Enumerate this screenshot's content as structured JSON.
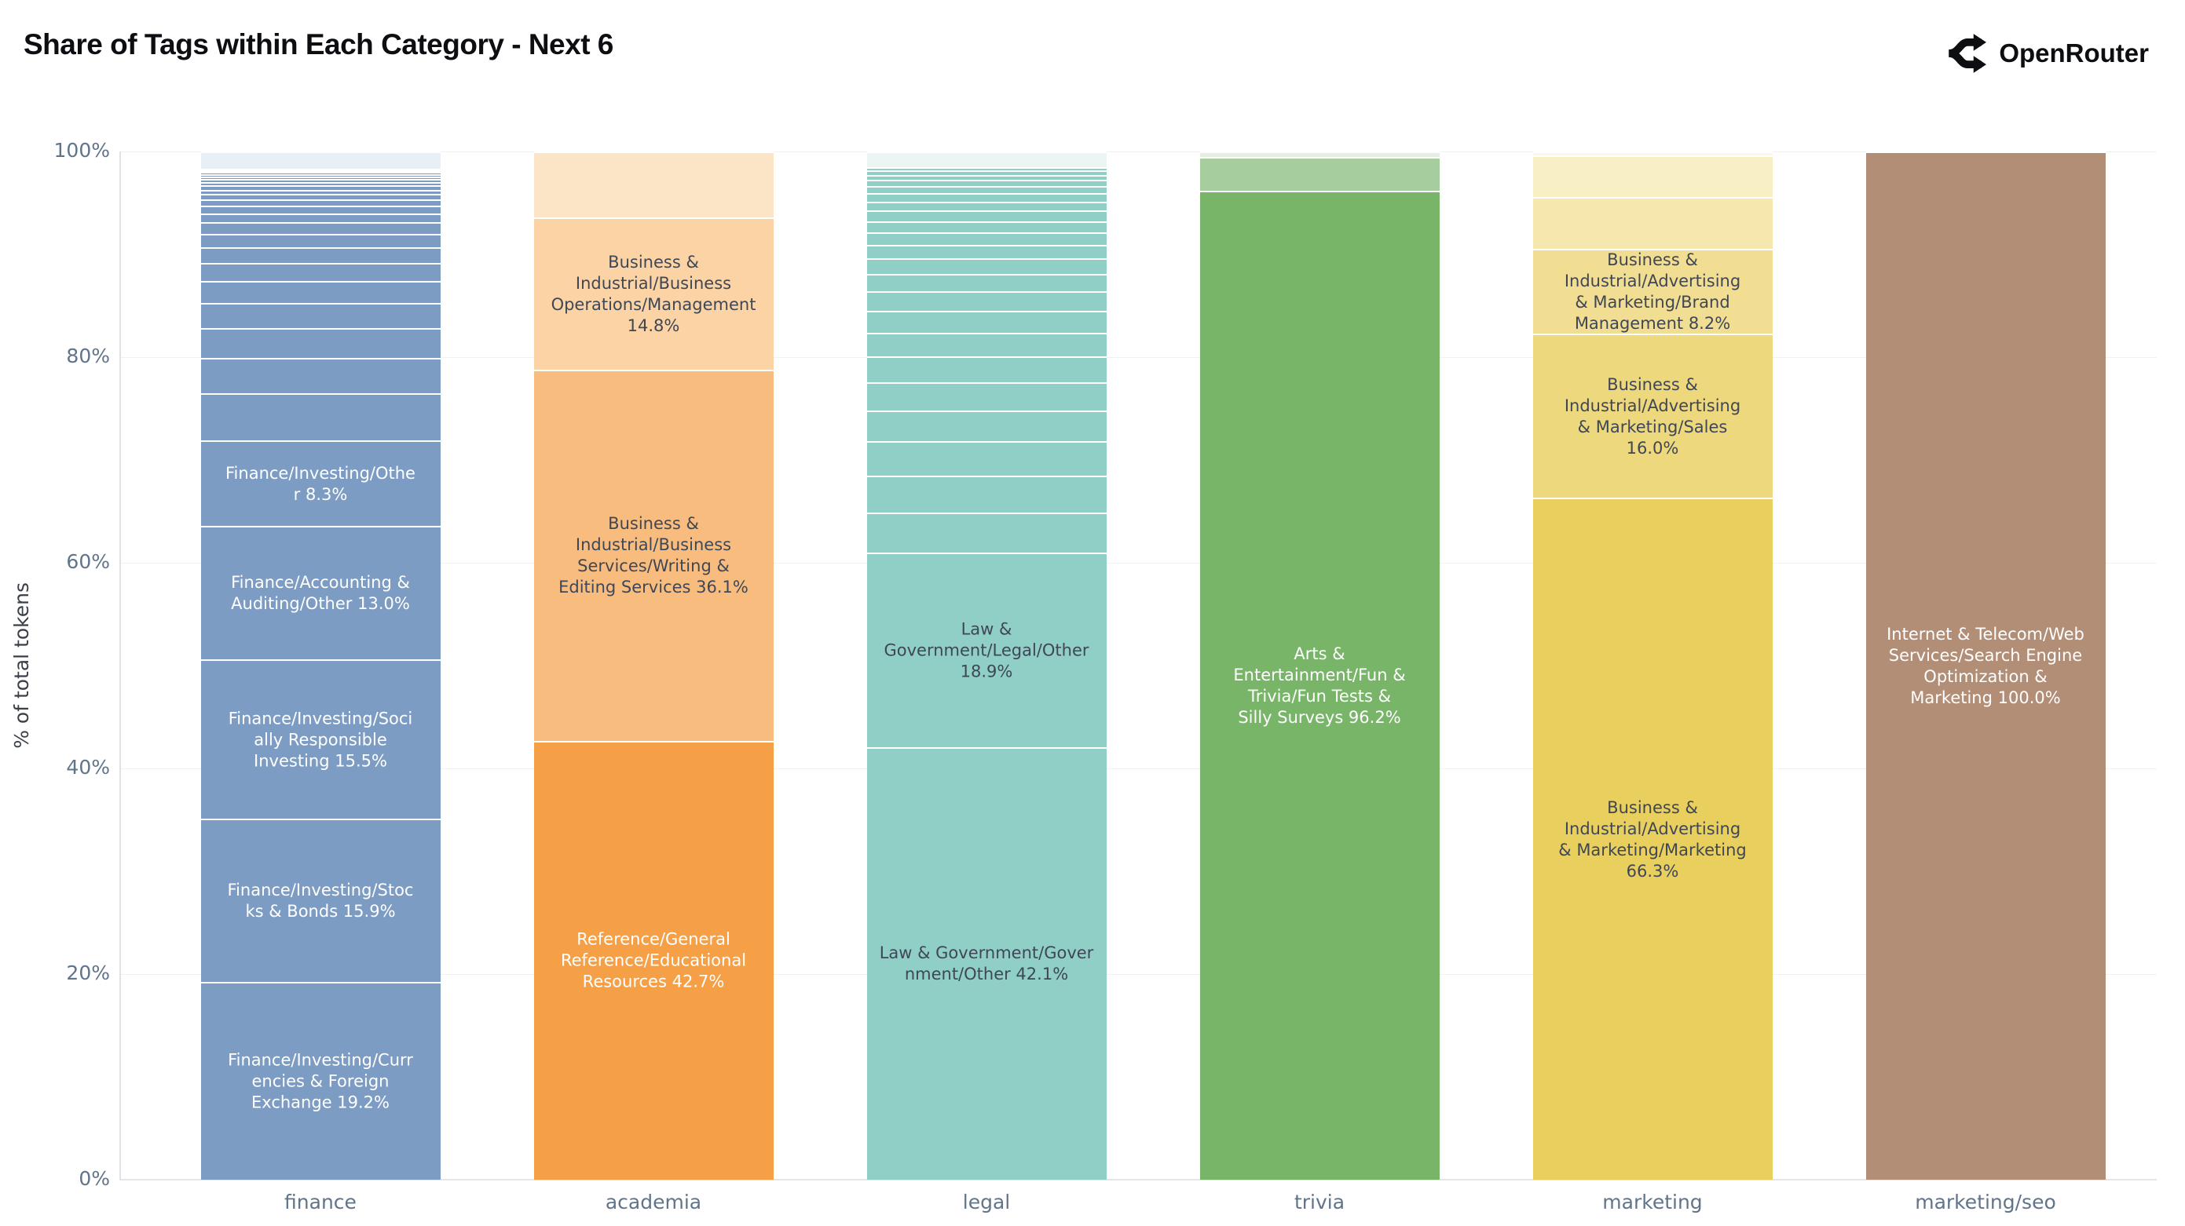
{
  "header": {
    "title": "Share of Tags within Each Category - Next 6",
    "brand": "OpenRouter",
    "logo_icon": "openrouter-routes-icon",
    "title_color": "#0c0e12"
  },
  "axes": {
    "y_title": "% of total tokens",
    "tick_color": "#60748a",
    "grid_color": "#f0f1f4",
    "background": "#ffffff"
  },
  "chart_data": {
    "type": "bar",
    "stacked": true,
    "orientation": "vertical",
    "title": "Share of Tags within Each Category - Next 6",
    "xlabel": "",
    "ylabel": "% of total tokens",
    "ylim": [
      0,
      100
    ],
    "grid": "horizontal",
    "legend": "none",
    "yticks": [
      {
        "value": 0,
        "label": "0%"
      },
      {
        "value": 20,
        "label": "20%"
      },
      {
        "value": 40,
        "label": "40%"
      },
      {
        "value": 60,
        "label": "60%"
      },
      {
        "value": 80,
        "label": "80%"
      },
      {
        "value": 100,
        "label": "100%"
      }
    ],
    "categories": [
      "finance",
      "academia",
      "legal",
      "trivia",
      "marketing",
      "marketing/seo"
    ],
    "bars": [
      {
        "category": "finance",
        "segments": [
          {
            "label": "Finance/Investing/Currencies & Foreign Exchange",
            "value": 19.2,
            "display": "Finance/Investing/Curr\nencies & Foreign\nExchange 19.2%",
            "color": "#7d9cc3",
            "label_color": "#ffffff"
          },
          {
            "label": "Finance/Investing/Stocks & Bonds",
            "value": 15.9,
            "display": "Finance/Investing/Stoc\nks & Bonds 15.9%",
            "color": "#7d9cc3",
            "label_color": "#ffffff"
          },
          {
            "label": "Finance/Investing/Socially Responsible Investing",
            "value": 15.5,
            "display": "Finance/Investing/Soci\nally Responsible\nInvesting 15.5%",
            "color": "#7d9cc3",
            "label_color": "#ffffff"
          },
          {
            "label": "Finance/Accounting & Auditing/Other",
            "value": 13.0,
            "display": "Finance/Accounting &\nAuditing/Other 13.0%",
            "color": "#7d9cc3",
            "label_color": "#ffffff"
          },
          {
            "label": "Finance/Investing/Other",
            "value": 8.3,
            "display": "Finance/Investing/Othe\nr 8.3%",
            "color": "#7d9cc3",
            "label_color": "#ffffff"
          },
          {
            "label": "",
            "value": 4.6,
            "display": "",
            "color": "#7d9cc3"
          },
          {
            "label": "",
            "value": 3.4,
            "display": "",
            "color": "#7d9cc3"
          },
          {
            "label": "",
            "value": 2.9,
            "display": "",
            "color": "#7d9cc3"
          },
          {
            "label": "",
            "value": 2.5,
            "display": "",
            "color": "#7d9cc3"
          },
          {
            "label": "",
            "value": 2.1,
            "display": "",
            "color": "#7d9cc3"
          },
          {
            "label": "",
            "value": 1.8,
            "display": "",
            "color": "#7d9cc3"
          },
          {
            "label": "",
            "value": 1.5,
            "display": "",
            "color": "#7d9cc3"
          },
          {
            "label": "",
            "value": 1.3,
            "display": "",
            "color": "#7d9cc3"
          },
          {
            "label": "",
            "value": 1.1,
            "display": "",
            "color": "#7d9cc3"
          },
          {
            "label": "",
            "value": 0.9,
            "display": "",
            "color": "#7d9cc3"
          },
          {
            "label": "",
            "value": 0.75,
            "display": "",
            "color": "#7d9cc3"
          },
          {
            "label": "",
            "value": 0.6,
            "display": "",
            "color": "#7d9cc3"
          },
          {
            "label": "",
            "value": 0.5,
            "display": "",
            "color": "#7d9cc3"
          },
          {
            "label": "",
            "value": 0.45,
            "display": "",
            "color": "#7d9cc3"
          },
          {
            "label": "",
            "value": 0.4,
            "display": "",
            "color": "#7d9cc3"
          },
          {
            "label": "",
            "value": 0.35,
            "display": "",
            "color": "#7d9cc3"
          },
          {
            "label": "",
            "value": 0.3,
            "display": "",
            "color": "#7d9cc3"
          },
          {
            "label": "",
            "value": 0.25,
            "display": "",
            "color": "#7d9cc3"
          },
          {
            "label": "",
            "value": 0.22,
            "display": "",
            "color": "#7d9cc3"
          },
          {
            "label": "",
            "value": 0.2,
            "display": "",
            "color": "#7d9cc3"
          },
          {
            "label": "",
            "value": 0.18,
            "display": "",
            "color": "#7d9cc3"
          },
          {
            "label": "",
            "value": 0.15,
            "display": "",
            "color": "#7d9cc3"
          },
          {
            "label": "",
            "value": 1.65,
            "display": "",
            "color": "#e9eff6"
          }
        ]
      },
      {
        "category": "academia",
        "segments": [
          {
            "label": "Reference/General Reference/Educational Resources",
            "value": 42.7,
            "display": "Reference/General\nReference/Educational\nResources 42.7%",
            "color": "#f5a047",
            "label_color": "#ffffff"
          },
          {
            "label": "Business & Industrial/Business Services/Writing & Editing Services",
            "value": 36.1,
            "display": "Business &\nIndustrial/Business\nServices/Writing &\nEditing Services 36.1%",
            "color": "#f8bd7e",
            "label_color": "#3f4756"
          },
          {
            "label": "Business & Industrial/Business Operations/Management",
            "value": 14.8,
            "display": "Business &\nIndustrial/Business\nOperations/Management\n14.8%",
            "color": "#fbd3a4",
            "label_color": "#3f4756"
          },
          {
            "label": "",
            "value": 6.4,
            "display": "",
            "color": "#fce4c7"
          }
        ]
      },
      {
        "category": "legal",
        "segments": [
          {
            "label": "Law & Government/Government/Other",
            "value": 42.1,
            "display": "Law & Government/Gover\nnment/Other 42.1%",
            "color": "#90cfc6",
            "label_color": "#3f4756"
          },
          {
            "label": "Law & Government/Legal/Other",
            "value": 18.9,
            "display": "Law &\nGovernment/Legal/Other\n18.9%",
            "color": "#90cfc6",
            "label_color": "#3f4756"
          },
          {
            "label": "",
            "value": 3.9,
            "display": "",
            "color": "#90cfc6"
          },
          {
            "label": "",
            "value": 3.6,
            "display": "",
            "color": "#90cfc6"
          },
          {
            "label": "",
            "value": 3.3,
            "display": "",
            "color": "#90cfc6"
          },
          {
            "label": "",
            "value": 3.0,
            "display": "",
            "color": "#90cfc6"
          },
          {
            "label": "",
            "value": 2.8,
            "display": "",
            "color": "#90cfc6"
          },
          {
            "label": "",
            "value": 2.5,
            "display": "",
            "color": "#90cfc6"
          },
          {
            "label": "",
            "value": 2.3,
            "display": "",
            "color": "#90cfc6"
          },
          {
            "label": "",
            "value": 2.1,
            "display": "",
            "color": "#90cfc6"
          },
          {
            "label": "",
            "value": 1.9,
            "display": "",
            "color": "#90cfc6"
          },
          {
            "label": "",
            "value": 1.7,
            "display": "",
            "color": "#90cfc6"
          },
          {
            "label": "",
            "value": 1.5,
            "display": "",
            "color": "#90cfc6"
          },
          {
            "label": "",
            "value": 1.35,
            "display": "",
            "color": "#90cfc6"
          },
          {
            "label": "",
            "value": 1.2,
            "display": "",
            "color": "#90cfc6"
          },
          {
            "label": "",
            "value": 1.1,
            "display": "",
            "color": "#90cfc6"
          },
          {
            "label": "",
            "value": 1.0,
            "display": "",
            "color": "#90cfc6"
          },
          {
            "label": "",
            "value": 0.9,
            "display": "",
            "color": "#90cfc6"
          },
          {
            "label": "",
            "value": 0.8,
            "display": "",
            "color": "#90cfc6"
          },
          {
            "label": "",
            "value": 0.7,
            "display": "",
            "color": "#90cfc6"
          },
          {
            "label": "",
            "value": 0.6,
            "display": "",
            "color": "#90cfc6"
          },
          {
            "label": "",
            "value": 0.5,
            "display": "",
            "color": "#90cfc6"
          },
          {
            "label": "",
            "value": 0.4,
            "display": "",
            "color": "#90cfc6"
          },
          {
            "label": "",
            "value": 0.35,
            "display": "",
            "color": "#90cfc6"
          },
          {
            "label": "",
            "value": 1.5,
            "display": "",
            "color": "#ebf5f3"
          }
        ]
      },
      {
        "category": "trivia",
        "segments": [
          {
            "label": "Arts & Entertainment/Fun & Trivia/Fun Tests & Silly Surveys",
            "value": 96.2,
            "display": "Arts &\nEntertainment/Fun &\nTrivia/Fun Tests &\nSilly Surveys 96.2%",
            "color": "#79b569",
            "label_color": "#ffffff"
          },
          {
            "label": "",
            "value": 3.3,
            "display": "",
            "color": "#a6cd9e"
          },
          {
            "label": "",
            "value": 0.5,
            "display": "",
            "color": "#e3efdf"
          }
        ]
      },
      {
        "category": "marketing",
        "segments": [
          {
            "label": "Business & Industrial/Advertising & Marketing/Marketing",
            "value": 66.3,
            "display": "Business &\nIndustrial/Advertising\n& Marketing/Marketing\n66.3%",
            "color": "#e9cf5e",
            "label_color": "#3f4756"
          },
          {
            "label": "Business & Industrial/Advertising & Marketing/Sales",
            "value": 16.0,
            "display": "Business &\nIndustrial/Advertising\n& Marketing/Sales\n16.0%",
            "color": "#eed87e",
            "label_color": "#3f4756"
          },
          {
            "label": "Business & Industrial/Advertising & Marketing/Brand Management",
            "value": 8.2,
            "display": "Business &\nIndustrial/Advertising\n& Marketing/Brand\nManagement 8.2%",
            "color": "#f1de92",
            "label_color": "#3f4756"
          },
          {
            "label": "",
            "value": 5.1,
            "display": "",
            "color": "#f5e7ad"
          },
          {
            "label": "",
            "value": 4.0,
            "display": "",
            "color": "#f9efc4"
          },
          {
            "label": "",
            "value": 0.4,
            "display": "",
            "color": "#fdf8e3"
          }
        ]
      },
      {
        "category": "marketing/seo",
        "segments": [
          {
            "label": "Internet & Telecom/Web Services/Search Engine Optimization & Marketing",
            "value": 100.0,
            "display": "Internet & Telecom/Web\nServices/Search Engine\nOptimization &\nMarketing 100.0%",
            "color": "#b28e77",
            "label_color": "#ffffff"
          }
        ]
      }
    ]
  }
}
